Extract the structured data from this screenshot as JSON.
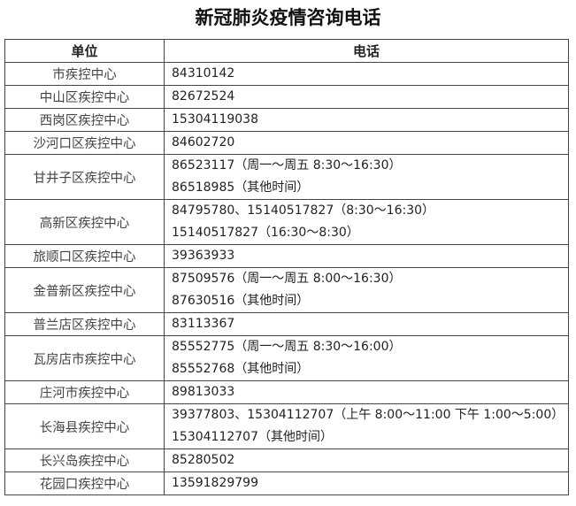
{
  "title": "新冠肺炎疫情咨询电话",
  "headers": {
    "unit": "单位",
    "phone": "电话"
  },
  "rows": [
    {
      "unit": "市疾控中心",
      "phones": [
        "84310142"
      ]
    },
    {
      "unit": "中山区疾控中心",
      "phones": [
        "82672524"
      ]
    },
    {
      "unit": "西岗区疾控中心",
      "phones": [
        "15304119038"
      ]
    },
    {
      "unit": "沙河口区疾控中心",
      "phones": [
        "84602720"
      ]
    },
    {
      "unit": "甘井子区疾控中心",
      "phones": [
        "86523117（周一～周五 8:30～16:30）",
        "86518985（其他时间）"
      ]
    },
    {
      "unit": "高新区疾控中心",
      "phones": [
        "84795780、15140517827（8:30～16:30）",
        "15140517827（16:30～8:30）"
      ]
    },
    {
      "unit": "旅顺口区疾控中心",
      "phones": [
        "39363933"
      ]
    },
    {
      "unit": "金普新区疾控中心",
      "phones": [
        "87509576（周一～周五 8:00～16:30）",
        "87630516（其他时间）"
      ]
    },
    {
      "unit": "普兰店区疾控中心",
      "phones": [
        "83113367"
      ]
    },
    {
      "unit": "瓦房店市疾控中心",
      "phones": [
        "85552775（周一～周五 8:30～16:00）",
        "85552768（其他时间）"
      ]
    },
    {
      "unit": "庄河市疾控中心",
      "phones": [
        "89813033"
      ]
    },
    {
      "unit": "长海县疾控中心",
      "phones": [
        "39377803、15304112707（上午 8:00～11:00  下午 1:00～5:00）",
        "15304112707（其他时间）"
      ]
    },
    {
      "unit": "长兴岛疾控中心",
      "phones": [
        "85280502"
      ]
    },
    {
      "unit": "花园口疾控中心",
      "phones": [
        "13591829799"
      ]
    }
  ]
}
